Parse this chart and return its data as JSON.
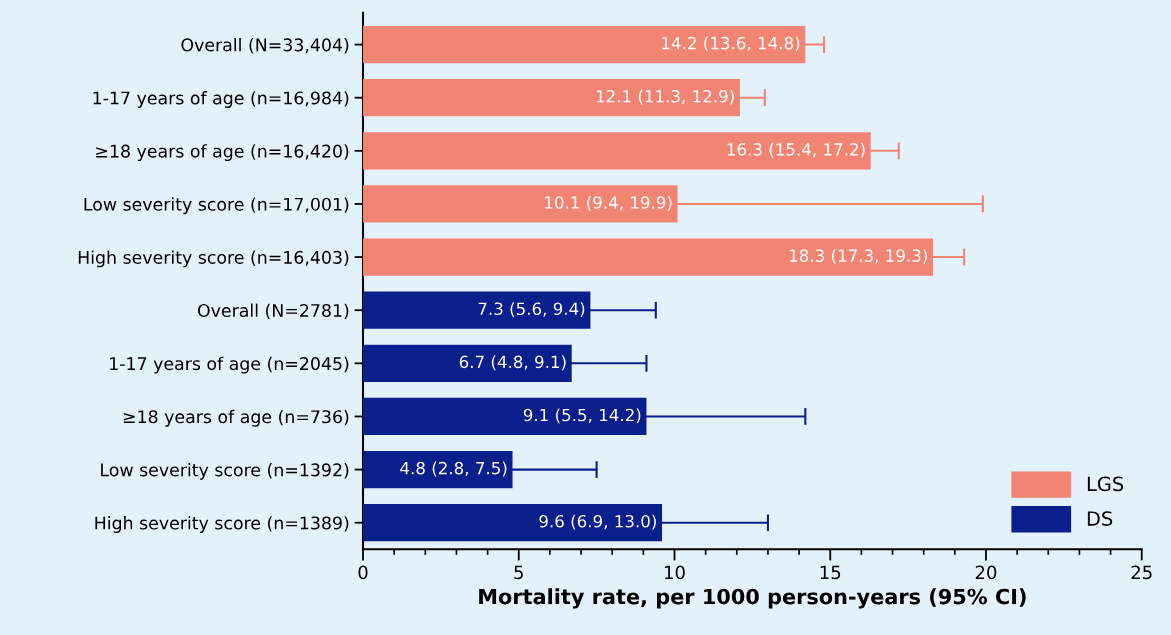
{
  "chart_data": {
    "type": "bar",
    "orientation": "horizontal",
    "xlabel": "Mortality rate, per 1000 person-years (95% CI)",
    "categories": [
      "Overall (N=33,404)",
      "1-17 years of age (n=16,984)",
      "≥18 years of age (n=16,420)",
      "Low severity score (n=17,001)",
      "High severity score (n=16,403)",
      "Overall (N=2781)",
      "1-17 years of age (n=2045)",
      "≥18 years of age (n=736)",
      "Low severity score (n=1392)",
      "High severity score (n=1389)"
    ],
    "series": [
      {
        "name": "LGS",
        "color": "#f28473",
        "values": [
          14.2,
          12.1,
          16.3,
          10.1,
          18.3,
          null,
          null,
          null,
          null,
          null
        ],
        "errors": [
          [
            13.6,
            14.8
          ],
          [
            11.3,
            12.9
          ],
          [
            15.4,
            17.2
          ],
          [
            9.4,
            19.9
          ],
          [
            17.3,
            19.3
          ],
          null,
          null,
          null,
          null,
          null
        ],
        "value_labels": [
          "14.2 (13.6, 14.8)",
          "12.1 (11.3, 12.9)",
          "16.3 (15.4, 17.2)",
          "10.1 (9.4, 19.9)",
          "18.3 (17.3, 19.3)",
          null,
          null,
          null,
          null,
          null
        ]
      },
      {
        "name": "DS",
        "color": "#0a1e8c",
        "values": [
          null,
          null,
          null,
          null,
          null,
          7.3,
          6.7,
          9.1,
          4.8,
          9.6
        ],
        "errors": [
          null,
          null,
          null,
          null,
          null,
          [
            5.6,
            9.4
          ],
          [
            4.8,
            9.1
          ],
          [
            5.5,
            14.2
          ],
          [
            2.8,
            7.5
          ],
          [
            6.9,
            13.0
          ]
        ],
        "value_labels": [
          null,
          null,
          null,
          null,
          null,
          "7.3 (5.6, 9.4)",
          "6.7 (4.8, 9.1)",
          "9.1 (5.5, 14.2)",
          "4.8 (2.8, 7.5)",
          "9.6 (6.9, 13.0)"
        ]
      }
    ],
    "xlim": [
      0,
      25
    ],
    "xticks": [
      0,
      5,
      10,
      15,
      20,
      25
    ],
    "grid": false,
    "legend": "bottom right"
  }
}
